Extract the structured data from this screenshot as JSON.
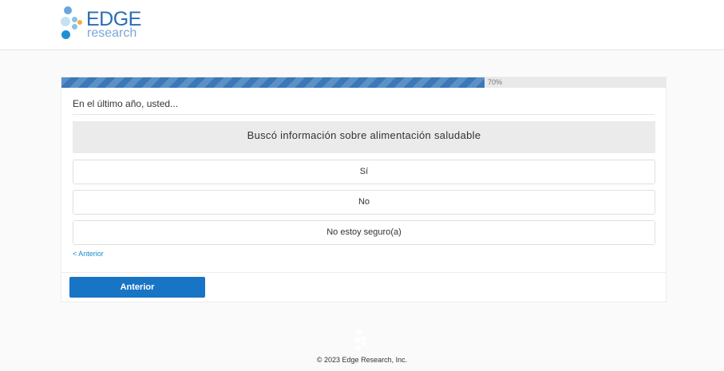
{
  "brand": {
    "name": "EDGE",
    "sub": "research"
  },
  "progress": {
    "percent": 70,
    "label": "70%"
  },
  "question": {
    "prompt": "En el último año, usted...",
    "statement": "Buscó información sobre alimentación saludable",
    "options": [
      "Sí",
      "No",
      "No estoy seguro(a)"
    ]
  },
  "nav": {
    "back_link": "< Anterior",
    "back_button": "Anterior"
  },
  "footer": {
    "copyright": "© 2023 Edge Research, Inc."
  },
  "colors": {
    "accent": "#1874c4",
    "progress": "#3a78b8"
  }
}
